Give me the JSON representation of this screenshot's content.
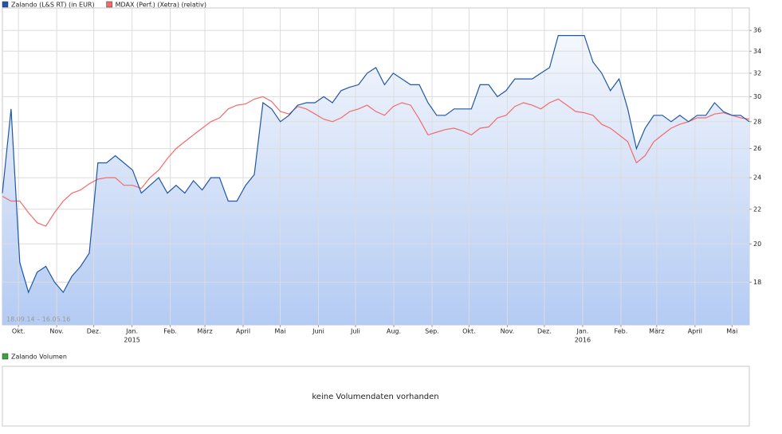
{
  "chart_data": {
    "type": "line",
    "log_scale": true,
    "grid": true,
    "legend": "top-left",
    "series": [
      {
        "name": "Zalando (L&S RT) (in EUR)",
        "color": "#1f56a8",
        "area": true,
        "values": [
          23,
          29,
          19,
          17.5,
          18.5,
          18.8,
          18,
          17.5,
          18.3,
          18.8,
          19.5,
          25,
          25,
          25.5,
          25,
          24.5,
          23,
          23.5,
          24,
          23,
          23.5,
          23,
          23.8,
          23.2,
          24,
          24,
          22.5,
          22.5,
          23.5,
          24.2,
          29.5,
          29,
          28,
          28.5,
          29.3,
          29.5,
          29.5,
          30,
          29.5,
          30.5,
          30.8,
          31,
          32,
          32.5,
          31,
          32,
          31.5,
          31,
          31,
          29.5,
          28.5,
          28.5,
          29,
          29,
          29,
          31,
          31,
          30,
          30.5,
          31.5,
          31.5,
          31.5,
          32,
          32.5,
          35.5,
          35.5,
          35.5,
          35.5,
          33,
          32,
          30.5,
          31.5,
          29,
          26,
          27.5,
          28.5,
          28.5,
          28,
          28.5,
          28,
          28.5,
          28.5,
          29.5,
          28.8,
          28.5,
          28.5,
          28
        ]
      },
      {
        "name": "MDAX (Perf.) (Xetra) (relativ)",
        "color": "#f26b6b",
        "values": [
          22.8,
          22.5,
          22.5,
          21.8,
          21.2,
          21,
          21.8,
          22.5,
          23,
          23.2,
          23.6,
          23.9,
          24,
          24,
          23.5,
          23.5,
          23.3,
          24,
          24.5,
          25.3,
          26,
          26.5,
          27,
          27.5,
          28,
          28.3,
          29,
          29.3,
          29.4,
          29.8,
          30,
          29.6,
          28.8,
          28.6,
          29.2,
          29,
          28.6,
          28.2,
          28,
          28.3,
          28.8,
          29,
          29.3,
          28.8,
          28.5,
          29.2,
          29.5,
          29.3,
          28.2,
          27,
          27.2,
          27.4,
          27.5,
          27.3,
          27,
          27.5,
          27.6,
          28.3,
          28.5,
          29.2,
          29.5,
          29.3,
          29,
          29.5,
          29.8,
          29.3,
          28.8,
          28.7,
          28.5,
          27.8,
          27.5,
          27,
          26.5,
          25,
          25.5,
          26.5,
          27,
          27.5,
          27.8,
          28,
          28.3,
          28.3,
          28.6,
          28.7,
          28.5,
          28.3,
          28.2
        ]
      }
    ],
    "ylim": [
      16,
      38.3
    ],
    "yticks": [
      18,
      20,
      22,
      24,
      26,
      28,
      30,
      32,
      34,
      36
    ],
    "xlim": [
      0,
      86.43
    ],
    "xticks": [
      {
        "value": 1.857,
        "label": "Okt."
      },
      {
        "value": 6.286,
        "label": "Nov."
      },
      {
        "value": 10.571,
        "label": "Dez."
      },
      {
        "value": 15,
        "label": "Jan."
      },
      {
        "value": 19.429,
        "label": "Feb."
      },
      {
        "value": 23.429,
        "label": "März"
      },
      {
        "value": 27.857,
        "label": "April"
      },
      {
        "value": 32.143,
        "label": "Mai"
      },
      {
        "value": 36.571,
        "label": "Juni"
      },
      {
        "value": 40.857,
        "label": "Juli"
      },
      {
        "value": 45.286,
        "label": "Aug."
      },
      {
        "value": 49.714,
        "label": "Sep."
      },
      {
        "value": 54,
        "label": "Okt."
      },
      {
        "value": 58.429,
        "label": "Nov."
      },
      {
        "value": 62.714,
        "label": "Dez."
      },
      {
        "value": 67.143,
        "label": "Jan."
      },
      {
        "value": 71.571,
        "label": "Feb."
      },
      {
        "value": 75.714,
        "label": "März"
      },
      {
        "value": 80.143,
        "label": "April"
      },
      {
        "value": 84.429,
        "label": "Mai"
      }
    ],
    "year_labels": [
      {
        "value": 15,
        "label": "2015"
      },
      {
        "value": 67.143,
        "label": "2016"
      }
    ],
    "date_range": "18.09.14 – 16.05.16"
  },
  "volume_panel": {
    "legend": "Zalando Volumen",
    "color": "#3aa53a",
    "message": "keine Volumendaten vorhanden"
  }
}
